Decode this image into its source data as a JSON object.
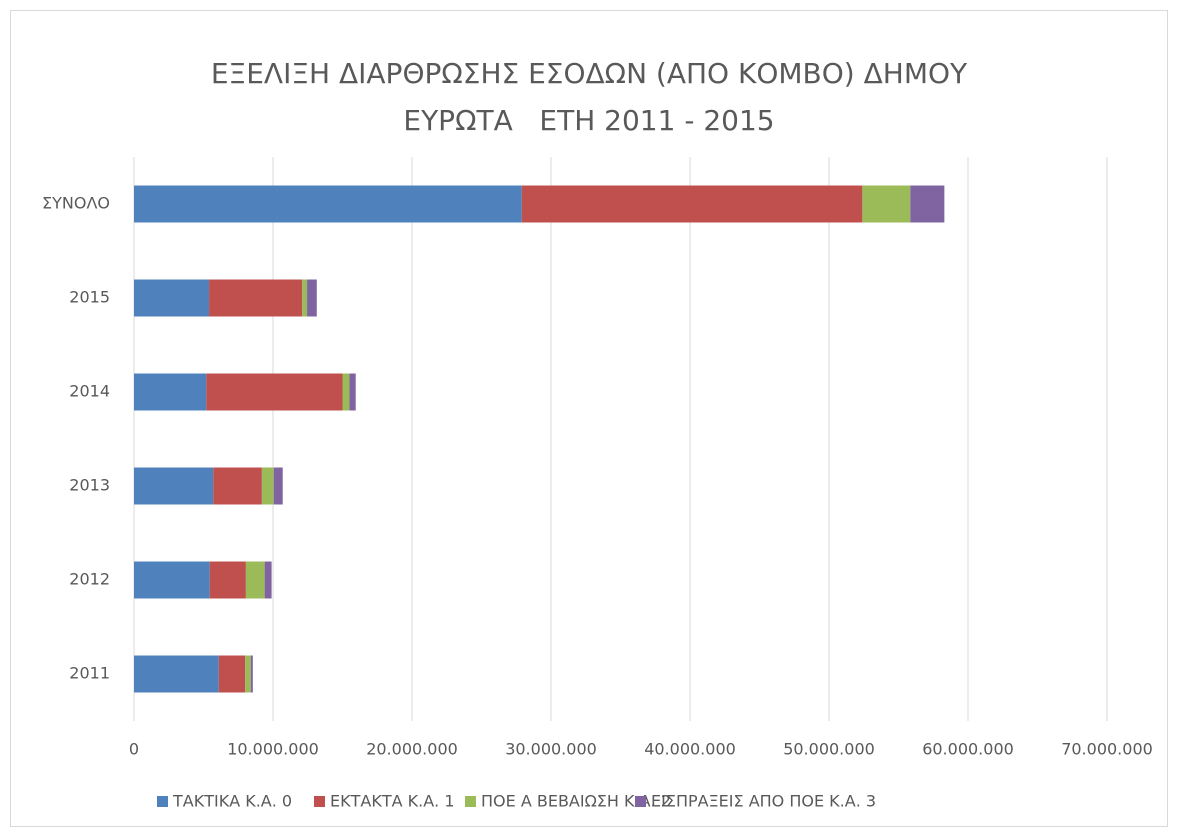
{
  "chart_data": {
    "type": "stacked_bar",
    "orientation": "horizontal",
    "title": [
      "ΕΞΕΛΙΞΗ ΔΙΑΡΘΡΩΣΗΣ ΕΣΟΔΩΝ (ΑΠΟ ΚΟΜΒΟ) ΔΗΜΟΥ",
      "ΕΥΡΩΤΑ   ΕΤΗ 2011 - 2015"
    ],
    "categories": [
      "2011",
      "2012",
      "2013",
      "2014",
      "2015",
      "ΣΥΝΟΛΟ"
    ],
    "series": [
      {
        "name": "ΤΑΚΤΙΚΑ Κ.Α. 0",
        "color": "#4f81bd",
        "values": [
          6100000,
          5450000,
          5700000,
          5200000,
          5400000,
          27900000
        ]
      },
      {
        "name": "ΕΚΤΑΚΤΑ Κ.Α. 1",
        "color": "#c0504d",
        "values": [
          1900000,
          2600000,
          3500000,
          9800000,
          6700000,
          24500000
        ]
      },
      {
        "name": "ΠΟΕ Α ΒΕΒΑΙΩΣΗ Κ.Α. 2",
        "color": "#9bbb59",
        "values": [
          400000,
          1350000,
          850000,
          500000,
          350000,
          3450000
        ]
      },
      {
        "name": "ΕΙΣΠΡΑΞΕΙΣ ΑΠΟ ΠΟΕ Κ.Α. 3",
        "color": "#8064a2",
        "values": [
          150000,
          500000,
          650000,
          450000,
          700000,
          2450000
        ]
      }
    ],
    "xlim": [
      0,
      70000000
    ],
    "xticks": [
      0,
      {
        "value": 10000000,
        "label": "10.000.000"
      },
      {
        "value": 20000000,
        "label": "20.000.000"
      },
      {
        "value": 30000000,
        "label": "30.000.000"
      },
      {
        "value": 40000000,
        "label": "40.000.000"
      },
      {
        "value": 50000000,
        "label": "50.000.000"
      },
      {
        "value": 60000000,
        "label": "60.000.000"
      },
      {
        "value": 70000000,
        "label": "70.000.000"
      }
    ],
    "grid": true,
    "legend": "bottom"
  }
}
